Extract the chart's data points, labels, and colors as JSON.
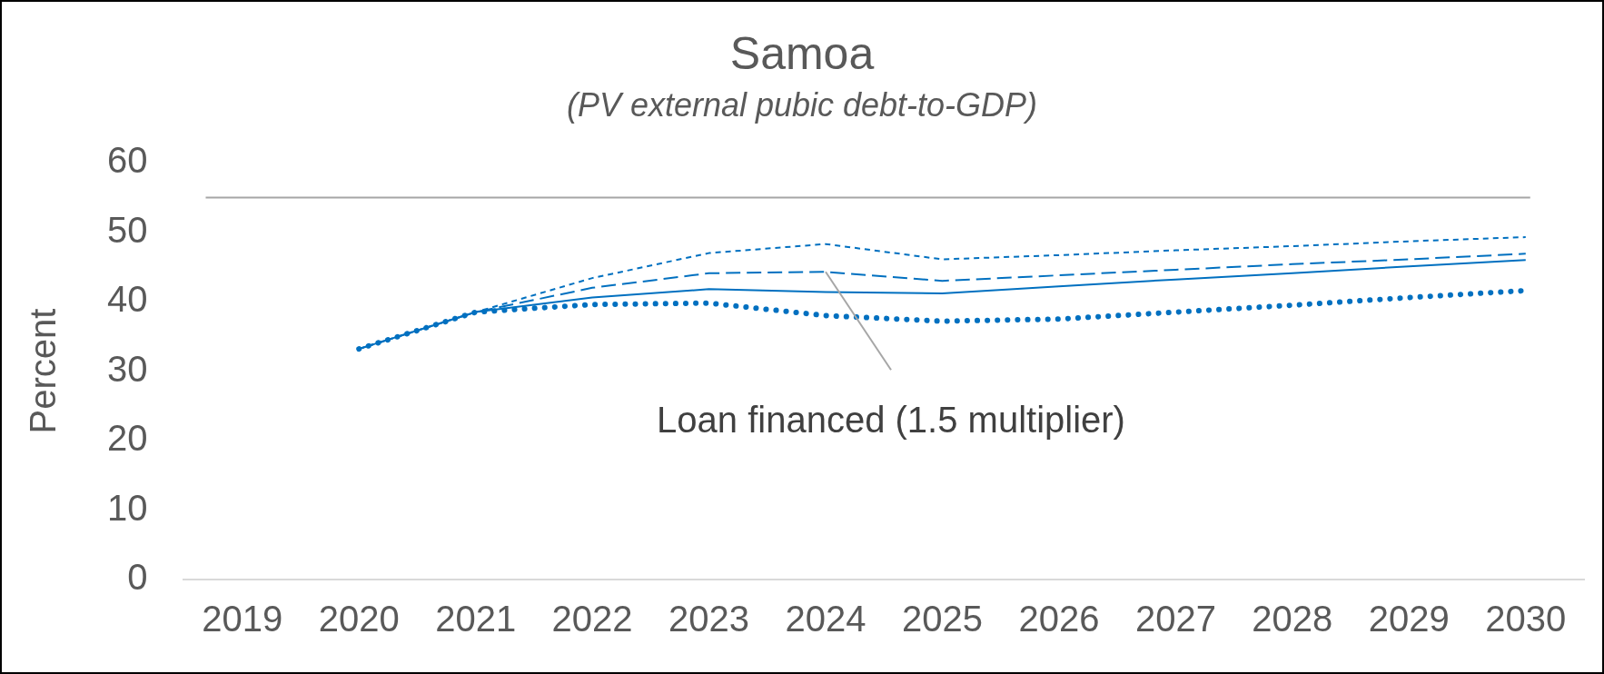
{
  "chart_data": {
    "type": "line",
    "title": "Samoa",
    "subtitle": "(PV external pubic debt-to-GDP)",
    "ylabel": "Percent",
    "categories": [
      "2019",
      "2020",
      "2021",
      "2022",
      "2023",
      "2024",
      "2025",
      "2026",
      "2027",
      "2028",
      "2029",
      "2030"
    ],
    "ylim": [
      0,
      60
    ],
    "yticks": [
      0,
      10,
      20,
      30,
      40,
      50,
      60
    ],
    "grid": false,
    "legend": false,
    "marker": "none",
    "series": [
      {
        "color": "#0070c0",
        "line_style": "dotted",
        "values": [
          null,
          33.2,
          38.5,
          39.6,
          39.8,
          38.0,
          37.2,
          37.5,
          38.5,
          39.5,
          40.6,
          41.6
        ]
      },
      {
        "color": "#0070c0",
        "line_style": "solid",
        "values": [
          null,
          33.2,
          38.5,
          40.6,
          41.8,
          41.4,
          41.2,
          42.2,
          43.2,
          44.1,
          45.1,
          46.0
        ]
      },
      {
        "color": "#0070c0",
        "line_style": "dashed",
        "values": [
          null,
          33.2,
          38.5,
          42.0,
          44.1,
          44.3,
          43.0,
          43.8,
          44.6,
          45.4,
          46.1,
          46.9
        ]
      },
      {
        "color": "#0070c0",
        "line_style": "shortdash",
        "values": [
          null,
          33.2,
          38.5,
          43.4,
          47.0,
          48.3,
          46.1,
          46.7,
          47.4,
          48.0,
          48.7,
          49.3
        ]
      }
    ],
    "ref_lines": [
      {
        "axis": "y",
        "value": 55,
        "color": "#a6a6a6"
      }
    ],
    "annotations": [
      {
        "text": "Loan financed (1.5 multiplier)",
        "x": "2024",
        "y": 44.3
      }
    ]
  }
}
